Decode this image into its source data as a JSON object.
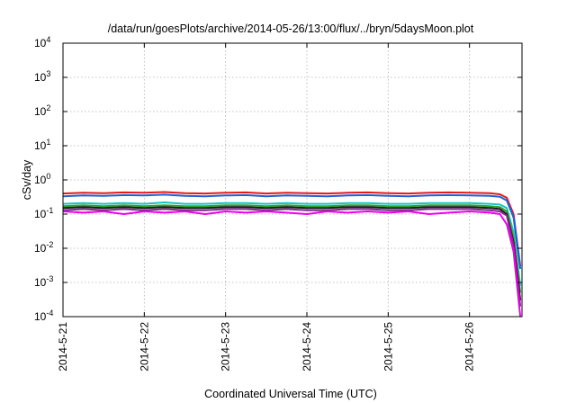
{
  "chart_data": {
    "type": "line",
    "title": "/data/run/goesPlots/archive/2014-05-26/13:00/flux/../bryn/5daysMoon.plot",
    "xlabel": "Coordinated Universal Time (UTC)",
    "ylabel": "cSv/day",
    "yscale": "log",
    "ylim": [
      0.0001,
      10000
    ],
    "xlim": [
      "2014-05-21 00:00",
      "2014-05-26 15:00"
    ],
    "x_ticks": [
      "2014-5-21",
      "2014-5-22",
      "2014-5-23",
      "2014-5-24",
      "2014-5-25",
      "2014-5-26"
    ],
    "y_ticks": [
      {
        "base": "10",
        "exp": "-4"
      },
      {
        "base": "10",
        "exp": "-3"
      },
      {
        "base": "10",
        "exp": "-2"
      },
      {
        "base": "10",
        "exp": "-1"
      },
      {
        "base": "10",
        "exp": "0"
      },
      {
        "base": "10",
        "exp": "1"
      },
      {
        "base": "10",
        "exp": "2"
      },
      {
        "base": "10",
        "exp": "3"
      },
      {
        "base": "10",
        "exp": "4"
      }
    ],
    "grid": true,
    "x_hours": [
      0,
      6,
      12,
      18,
      24,
      30,
      36,
      42,
      48,
      54,
      60,
      66,
      72,
      78,
      84,
      90,
      96,
      102,
      108,
      114,
      120,
      126,
      129,
      131,
      133,
      135
    ],
    "series": [
      {
        "color": "#e41a1c",
        "values": [
          0.4,
          0.42,
          0.41,
          0.43,
          0.42,
          0.44,
          0.41,
          0.4,
          0.42,
          0.43,
          0.4,
          0.42,
          0.41,
          0.4,
          0.42,
          0.43,
          0.41,
          0.4,
          0.42,
          0.43,
          0.42,
          0.41,
          0.38,
          0.3,
          0.1,
          0.003
        ]
      },
      {
        "color": "#1f5fd6",
        "values": [
          0.33,
          0.35,
          0.34,
          0.36,
          0.35,
          0.37,
          0.34,
          0.33,
          0.35,
          0.36,
          0.33,
          0.35,
          0.34,
          0.33,
          0.35,
          0.36,
          0.34,
          0.33,
          0.35,
          0.36,
          0.35,
          0.34,
          0.32,
          0.25,
          0.08,
          0.0025
        ]
      },
      {
        "color": "#17c3c3",
        "values": [
          0.2,
          0.21,
          0.2,
          0.21,
          0.2,
          0.22,
          0.2,
          0.2,
          0.21,
          0.21,
          0.2,
          0.21,
          0.2,
          0.2,
          0.21,
          0.21,
          0.2,
          0.2,
          0.21,
          0.21,
          0.21,
          0.2,
          0.19,
          0.15,
          0.03,
          0.0008
        ]
      },
      {
        "color": "#2ca02c",
        "values": [
          0.17,
          0.18,
          0.17,
          0.18,
          0.17,
          0.18,
          0.17,
          0.17,
          0.18,
          0.18,
          0.17,
          0.18,
          0.17,
          0.17,
          0.18,
          0.18,
          0.17,
          0.17,
          0.18,
          0.18,
          0.18,
          0.17,
          0.16,
          0.12,
          0.02,
          0.0005
        ]
      },
      {
        "color": "#1a1a1a",
        "values": [
          0.15,
          0.16,
          0.15,
          0.16,
          0.15,
          0.16,
          0.15,
          0.15,
          0.16,
          0.16,
          0.15,
          0.16,
          0.15,
          0.15,
          0.16,
          0.16,
          0.15,
          0.15,
          0.16,
          0.16,
          0.16,
          0.15,
          0.14,
          0.1,
          0.015,
          0.0003
        ]
      },
      {
        "color": "#7b2d8b",
        "values": [
          0.13,
          0.14,
          0.13,
          0.14,
          0.13,
          0.14,
          0.13,
          0.13,
          0.14,
          0.14,
          0.13,
          0.14,
          0.13,
          0.13,
          0.14,
          0.14,
          0.13,
          0.13,
          0.14,
          0.14,
          0.14,
          0.13,
          0.12,
          0.09,
          0.012,
          0.0002
        ]
      },
      {
        "color": "#ee00ee",
        "values": [
          0.12,
          0.11,
          0.12,
          0.1,
          0.12,
          0.11,
          0.12,
          0.1,
          0.12,
          0.11,
          0.12,
          0.11,
          0.1,
          0.12,
          0.11,
          0.12,
          0.11,
          0.12,
          0.1,
          0.11,
          0.12,
          0.11,
          0.1,
          0.05,
          0.008,
          0.0001
        ]
      }
    ]
  }
}
